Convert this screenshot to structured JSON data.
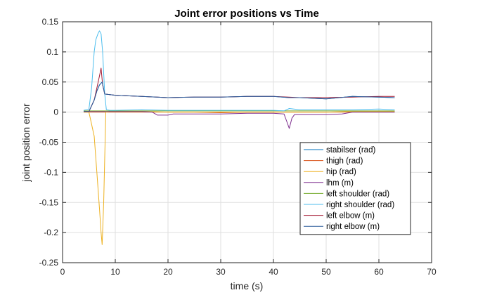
{
  "chart_data": {
    "type": "line",
    "title": "Joint error positions vs Time",
    "xlabel": "time (s)",
    "ylabel": "joint position error",
    "xlim": [
      0,
      70
    ],
    "ylim": [
      -0.25,
      0.15
    ],
    "xticks": [
      0,
      10,
      20,
      30,
      40,
      50,
      60,
      70
    ],
    "yticks": [
      -0.25,
      -0.2,
      -0.15,
      -0.1,
      -0.05,
      0,
      0.05,
      0.1,
      0.15
    ],
    "xtick_labels": [
      "0",
      "10",
      "20",
      "30",
      "40",
      "50",
      "60",
      "70"
    ],
    "ytick_labels": [
      "-0.25",
      "-0.2",
      "-0.15",
      "-0.1",
      "-0.05",
      "0",
      "0.05",
      "0.1",
      "0.15"
    ],
    "grid": true,
    "legend_position": "lower-right",
    "series": [
      {
        "name": "stabilser (rad)",
        "color": "#0072bd",
        "x": [
          4,
          5,
          6,
          6.5,
          7,
          7.5,
          8,
          10,
          15,
          20,
          25,
          30,
          35,
          40,
          43,
          45,
          50,
          55,
          60,
          63
        ],
        "y": [
          0.001,
          0.001,
          0.02,
          0.035,
          0.045,
          0.05,
          0.03,
          0.028,
          0.026,
          0.024,
          0.025,
          0.025,
          0.026,
          0.026,
          0.024,
          0.024,
          0.022,
          0.026,
          0.025,
          0.024
        ]
      },
      {
        "name": "thigh (rad)",
        "color": "#d95319",
        "x": [
          4,
          5,
          6,
          7,
          8,
          10,
          15,
          20,
          25,
          30,
          35,
          40,
          45,
          50,
          55,
          60,
          63
        ],
        "y": [
          0,
          0,
          0,
          0,
          0,
          0,
          0,
          0,
          0,
          -0.001,
          0,
          0,
          0,
          0,
          0,
          0,
          0
        ]
      },
      {
        "name": "hip (rad)",
        "color": "#edb120",
        "x": [
          4,
          5,
          6,
          6.5,
          7,
          7.3,
          7.5,
          7.8,
          8.2,
          9,
          10,
          15,
          20,
          25,
          30,
          35,
          40,
          45,
          50,
          55,
          60,
          63
        ],
        "y": [
          0,
          0,
          -0.04,
          -0.1,
          -0.16,
          -0.2,
          -0.22,
          -0.15,
          0,
          0.001,
          0.001,
          0.001,
          0,
          0,
          0,
          0,
          0,
          0,
          0,
          0.001,
          0.001,
          0.001
        ]
      },
      {
        "name": "lhm (m)",
        "color": "#7e2f8e",
        "x": [
          4,
          5,
          6,
          7,
          8,
          10,
          15,
          17,
          18,
          20,
          21,
          25,
          30,
          35,
          40,
          42,
          42.5,
          43,
          43.5,
          44,
          45,
          50,
          53,
          55,
          60,
          63
        ],
        "y": [
          0.001,
          0.001,
          0.001,
          0.001,
          0.001,
          0.001,
          0.001,
          0,
          -0.005,
          -0.005,
          -0.003,
          -0.003,
          -0.003,
          -0.002,
          -0.002,
          -0.003,
          -0.015,
          -0.027,
          -0.01,
          -0.004,
          -0.004,
          -0.004,
          -0.003,
          0,
          0,
          0
        ]
      },
      {
        "name": "left shoulder (rad)",
        "color": "#77ac30",
        "x": [
          4,
          5,
          6,
          7,
          8,
          10,
          15,
          20,
          25,
          30,
          35,
          40,
          45,
          50,
          55,
          60,
          63
        ],
        "y": [
          0.002,
          0.002,
          0.002,
          0.002,
          0.002,
          0.002,
          0.002,
          0.002,
          0.002,
          0.002,
          0.002,
          0.002,
          0.002,
          0.002,
          0.002,
          0.002,
          0.002
        ]
      },
      {
        "name": "right shoulder (rad)",
        "color": "#4dbeee",
        "x": [
          4,
          5,
          5.5,
          6,
          6.3,
          6.7,
          7,
          7.3,
          7.6,
          8,
          8.3,
          9,
          10,
          15,
          20,
          25,
          30,
          35,
          40,
          42,
          43,
          45,
          50,
          55,
          60,
          63
        ],
        "y": [
          0.003,
          0.005,
          0.04,
          0.1,
          0.12,
          0.13,
          0.135,
          0.13,
          0.1,
          0.03,
          0.004,
          0.003,
          0.003,
          0.004,
          0.003,
          0.003,
          0.003,
          0.003,
          0.003,
          0.002,
          0.006,
          0.004,
          0.004,
          0.004,
          0.005,
          0.004
        ]
      },
      {
        "name": "left elbow (m)",
        "color": "#a2142f",
        "x": [
          4,
          5,
          6,
          6.5,
          7,
          7.3,
          7.6,
          8,
          10,
          15,
          20,
          25,
          30,
          35,
          40,
          45,
          50,
          55,
          60,
          63
        ],
        "y": [
          0.001,
          0.001,
          0.02,
          0.04,
          0.06,
          0.073,
          0.045,
          0.03,
          0.028,
          0.026,
          0.024,
          0.025,
          0.025,
          0.026,
          0.026,
          0.024,
          0.024,
          0.025,
          0.026,
          0.026
        ]
      },
      {
        "name": "right elbow (m)",
        "color": "#2b5d9c",
        "x": [
          4,
          5,
          6,
          6.5,
          7,
          7.5,
          8,
          10,
          15,
          20,
          25,
          30,
          35,
          40,
          43,
          45,
          50,
          55,
          60,
          63
        ],
        "y": [
          0.001,
          0.001,
          0.02,
          0.035,
          0.045,
          0.05,
          0.03,
          0.028,
          0.026,
          0.024,
          0.025,
          0.025,
          0.026,
          0.026,
          0.024,
          0.024,
          0.022,
          0.026,
          0.025,
          0.024
        ]
      }
    ]
  }
}
